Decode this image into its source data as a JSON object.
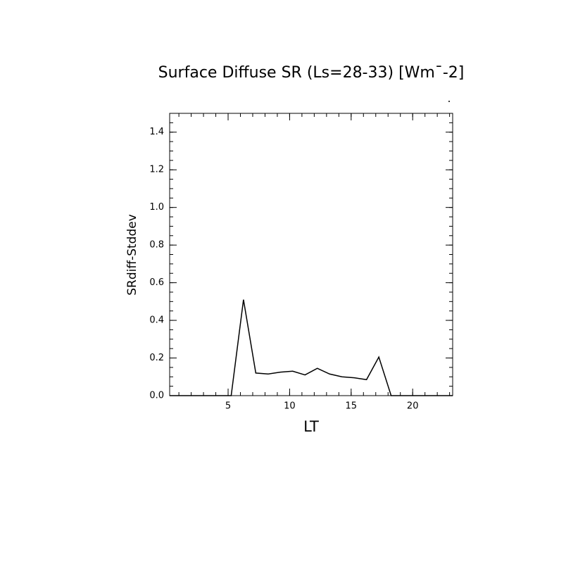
{
  "chart_data": {
    "type": "line",
    "title": "Surface Diffuse SR (Ls=28-33) [Wm¯-2]",
    "x_label": "LT",
    "y_label": "SRdiff-Stddev",
    "color": "#000000",
    "x": [
      0.25,
      1.25,
      2.25,
      3.25,
      4.25,
      5.25,
      6.25,
      7.25,
      8.25,
      9.25,
      10.25,
      11.25,
      12.25,
      13.25,
      14.25,
      15.25,
      16.25,
      17.25,
      18.25,
      19.25,
      20.25,
      21.25,
      22.25,
      23.25
    ],
    "values": [
      0,
      0,
      0,
      0,
      0,
      0,
      0.51,
      0.12,
      0.115,
      0.125,
      0.13,
      0.11,
      0.145,
      0.115,
      0.1,
      0.095,
      0.085,
      0.205,
      0,
      0,
      0,
      0,
      0,
      0
    ],
    "xlim": [
      0.25,
      23.25
    ],
    "xticks": [
      5,
      10,
      15,
      20
    ],
    "ylim": [
      0,
      1.5
    ],
    "yticks": [
      {
        "value": 0,
        "label": "0.0"
      },
      {
        "value": 0.2,
        "label": "0.2"
      },
      {
        "value": 0.4,
        "label": "0.4"
      },
      {
        "value": 0.6,
        "label": "0.6"
      },
      {
        "value": 0.8,
        "label": "0.8"
      },
      {
        "value": 1.0,
        "label": "1.0"
      },
      {
        "value": 1.2,
        "label": "1.2"
      },
      {
        "value": 1.4,
        "label": "1.4"
      }
    ],
    "grid": false
  }
}
